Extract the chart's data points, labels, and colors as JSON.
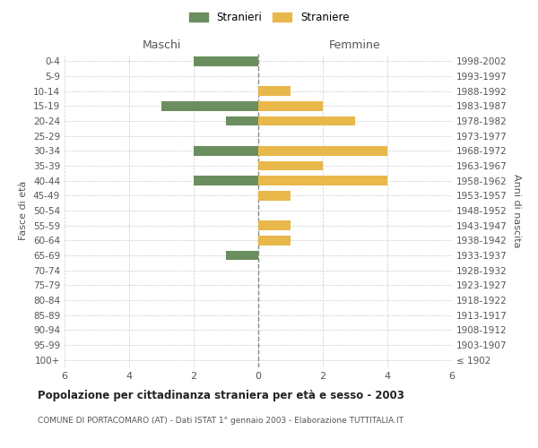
{
  "age_groups": [
    "100+",
    "95-99",
    "90-94",
    "85-89",
    "80-84",
    "75-79",
    "70-74",
    "65-69",
    "60-64",
    "55-59",
    "50-54",
    "45-49",
    "40-44",
    "35-39",
    "30-34",
    "25-29",
    "20-24",
    "15-19",
    "10-14",
    "5-9",
    "0-4"
  ],
  "birth_years": [
    "≤ 1902",
    "1903-1907",
    "1908-1912",
    "1913-1917",
    "1918-1922",
    "1923-1927",
    "1928-1932",
    "1933-1937",
    "1938-1942",
    "1943-1947",
    "1948-1952",
    "1953-1957",
    "1958-1962",
    "1963-1967",
    "1968-1972",
    "1973-1977",
    "1978-1982",
    "1983-1987",
    "1988-1992",
    "1993-1997",
    "1998-2002"
  ],
  "males": [
    0,
    0,
    0,
    0,
    0,
    0,
    0,
    1,
    0,
    0,
    0,
    0,
    2,
    0,
    2,
    0,
    1,
    3,
    0,
    0,
    2
  ],
  "females": [
    0,
    0,
    0,
    0,
    0,
    0,
    0,
    0,
    1,
    1,
    0,
    1,
    4,
    2,
    4,
    0,
    3,
    2,
    1,
    0,
    0
  ],
  "male_color": "#6b8e5e",
  "female_color": "#e8b84b",
  "grid_color": "#cccccc",
  "center_line_color": "#888888",
  "title": "Popolazione per cittadinanza straniera per età e sesso - 2003",
  "subtitle": "COMUNE DI PORTACOMARO (AT) - Dati ISTAT 1° gennaio 2003 - Elaborazione TUTTITALIA.IT",
  "xlabel_left": "Maschi",
  "xlabel_right": "Femmine",
  "ylabel_left": "Fasce di età",
  "ylabel_right": "Anni di nascita",
  "legend_male": "Stranieri",
  "legend_female": "Straniere",
  "xlim": 6,
  "background_color": "#ffffff"
}
